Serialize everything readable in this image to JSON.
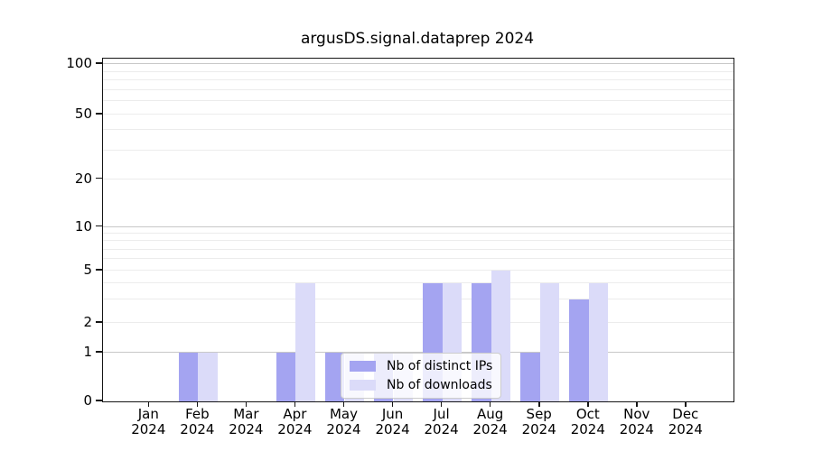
{
  "chart_data": {
    "type": "bar",
    "title": "argusDS.signal.dataprep 2024",
    "categories": [
      "Jan",
      "Feb",
      "Mar",
      "Apr",
      "May",
      "Jun",
      "Jul",
      "Aug",
      "Sep",
      "Oct",
      "Nov",
      "Dec"
    ],
    "year_label": "2024",
    "series": [
      {
        "name": "Nb of distinct IPs",
        "color": "#a4a4f1",
        "values": [
          0,
          1,
          0,
          1,
          1,
          1,
          4,
          4,
          1,
          3,
          0,
          0
        ]
      },
      {
        "name": "Nb of downloads",
        "color": "#dbdbf9",
        "values": [
          0,
          1,
          0,
          4,
          1,
          1,
          4,
          5,
          4,
          4,
          0,
          0
        ]
      }
    ],
    "y_ticks": [
      0,
      1,
      2,
      5,
      10,
      20,
      50,
      100
    ],
    "y_tick_labels": [
      "0",
      "1",
      "2",
      "5",
      "10",
      "20",
      "50",
      "100"
    ],
    "y_major_gridlines": [
      1,
      10,
      100
    ],
    "y_minor_gridlines": [
      2,
      3,
      4,
      5,
      6,
      7,
      8,
      9,
      20,
      30,
      40,
      50,
      60,
      70,
      80,
      90
    ],
    "ylim": [
      0,
      100
    ],
    "scale": "symlog",
    "grid": true,
    "legend_position": "lower-center-inside",
    "colors": {
      "grid_major": "#c8c8c8",
      "grid_minor": "#ececec",
      "spine": "#151515",
      "background": "#ffffff"
    }
  }
}
